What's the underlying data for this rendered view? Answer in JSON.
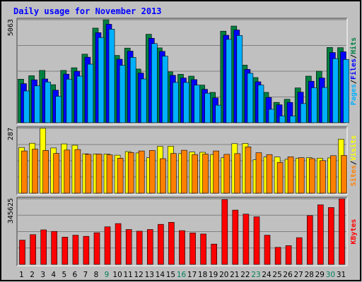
{
  "chart_data": {
    "type": "bar",
    "title": "Daily usage for November 2013",
    "days": [
      "1",
      "2",
      "3",
      "4",
      "5",
      "6",
      "7",
      "8",
      "9",
      "10",
      "11",
      "12",
      "13",
      "14",
      "15",
      "16",
      "17",
      "18",
      "19",
      "20",
      "21",
      "22",
      "23",
      "24",
      "25",
      "26",
      "27",
      "28",
      "29",
      "30",
      "31"
    ],
    "weekend_days": [
      "9",
      "16",
      "23",
      "30"
    ],
    "top_panel": {
      "max_label": "5063",
      "ymax": 5063,
      "side_labels": [
        "Pages",
        "Files",
        "Hits"
      ],
      "series": [
        {
          "name": "Hits",
          "color": "#008040",
          "values": [
            2140,
            2310,
            2570,
            1870,
            2570,
            2700,
            3370,
            4650,
            5063,
            3310,
            3670,
            2640,
            4350,
            3680,
            2500,
            2380,
            2290,
            1850,
            1490,
            4500,
            4750,
            2830,
            2220,
            1490,
            1000,
            1150,
            1710,
            2290,
            2530,
            3700,
            3690
          ]
        },
        {
          "name": "Files",
          "color": "#0000ff",
          "values": [
            1920,
            2110,
            2150,
            1600,
            2390,
            2530,
            3220,
            4430,
            4840,
            3120,
            3520,
            2440,
            4150,
            3510,
            2330,
            2200,
            2120,
            1640,
            1220,
            4300,
            4560,
            2620,
            2010,
            1240,
            880,
            1000,
            1500,
            2040,
            2200,
            3450,
            3490
          ]
        },
        {
          "name": "Pages",
          "color": "#00b0ff",
          "values": [
            1560,
            1810,
            2000,
            1300,
            2140,
            2290,
            2880,
            4190,
            4600,
            2820,
            3210,
            2150,
            3890,
            3270,
            1980,
            1980,
            1850,
            1450,
            860,
            4100,
            4290,
            2430,
            1850,
            660,
            330,
            330,
            940,
            1720,
            1730,
            3150,
            3110
          ]
        }
      ]
    },
    "middle_panel": {
      "max_label": "287",
      "ymax": 287,
      "side_labels": [
        "Sites",
        "Visits"
      ],
      "series": [
        {
          "name": "Visits",
          "color": "#ffff00",
          "values": [
            202,
            221,
            287,
            200,
            218,
            212,
            174,
            173,
            173,
            168,
            184,
            178,
            157,
            207,
            208,
            175,
            182,
            181,
            171,
            157,
            219,
            220,
            148,
            160,
            160,
            150,
            154,
            157,
            155,
            156,
            239
          ]
        },
        {
          "name": "Sites",
          "color": "#ff8000",
          "values": [
            187,
            195,
            189,
            176,
            191,
            193,
            172,
            173,
            170,
            155,
            180,
            187,
            189,
            153,
            176,
            190,
            171,
            173,
            187,
            172,
            175,
            205,
            179,
            171,
            136,
            161,
            157,
            153,
            144,
            166,
            167
          ]
        }
      ]
    },
    "bottom_panel": {
      "max_label": "345625",
      "ymax": 345625,
      "side_labels": [
        "KBytes"
      ],
      "series": [
        {
          "name": "KBytes",
          "color": "#ff0000",
          "values": [
            128000,
            157000,
            182000,
            174000,
            144000,
            154000,
            148000,
            167000,
            198000,
            215000,
            184000,
            175000,
            184000,
            211000,
            222000,
            178000,
            166000,
            160000,
            107000,
            342000,
            286000,
            265000,
            251000,
            154000,
            90000,
            99000,
            141000,
            257000,
            314000,
            300000,
            345625
          ]
        }
      ]
    }
  }
}
